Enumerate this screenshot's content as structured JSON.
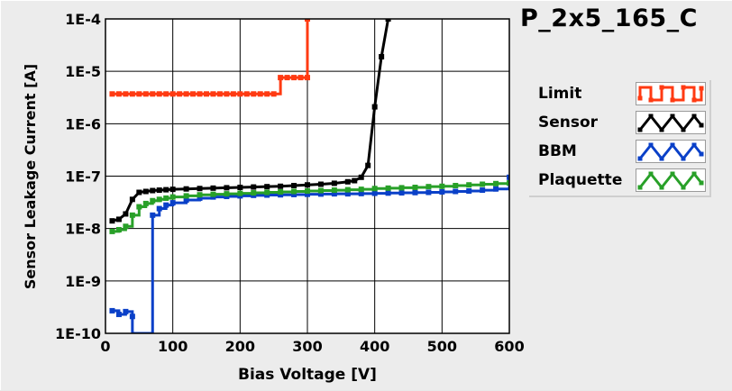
{
  "title": "P_2x5_165_C",
  "chart_data": {
    "type": "line",
    "title": "P_2x5_165_C",
    "xlabel": "Bias Voltage [V]",
    "ylabel": "Sensor Leakage Current [A]",
    "xlim": [
      0,
      600
    ],
    "ylim": [
      1e-10,
      0.0001
    ],
    "yscale": "log",
    "grid": true,
    "legend_position": "right",
    "x_ticks": [
      0,
      100,
      200,
      300,
      400,
      500,
      600
    ],
    "x_tick_labels": [
      "0",
      "100",
      "200",
      "300",
      "400",
      "500",
      "600"
    ],
    "y_ticks": [
      1e-10,
      1e-09,
      1e-08,
      1e-07,
      1e-06,
      1e-05,
      0.0001
    ],
    "y_tick_labels": [
      "1E-10",
      "1E-9",
      "1E-8",
      "1E-7",
      "1E-6",
      "1E-5",
      "1E-4"
    ],
    "series": [
      {
        "name": "Limit",
        "color": "#ff3a12",
        "step": true,
        "points": [
          [
            10,
            3.7e-06
          ],
          [
            20,
            3.7e-06
          ],
          [
            30,
            3.7e-06
          ],
          [
            40,
            3.7e-06
          ],
          [
            50,
            3.7e-06
          ],
          [
            60,
            3.7e-06
          ],
          [
            70,
            3.7e-06
          ],
          [
            80,
            3.7e-06
          ],
          [
            90,
            3.7e-06
          ],
          [
            100,
            3.7e-06
          ],
          [
            110,
            3.7e-06
          ],
          [
            120,
            3.7e-06
          ],
          [
            130,
            3.7e-06
          ],
          [
            140,
            3.7e-06
          ],
          [
            150,
            3.7e-06
          ],
          [
            160,
            3.7e-06
          ],
          [
            170,
            3.7e-06
          ],
          [
            180,
            3.7e-06
          ],
          [
            190,
            3.7e-06
          ],
          [
            200,
            3.7e-06
          ],
          [
            210,
            3.7e-06
          ],
          [
            220,
            3.7e-06
          ],
          [
            230,
            3.7e-06
          ],
          [
            240,
            3.7e-06
          ],
          [
            250,
            3.7e-06
          ],
          [
            260,
            7.6e-06
          ],
          [
            270,
            7.6e-06
          ],
          [
            280,
            7.6e-06
          ],
          [
            290,
            7.6e-06
          ],
          [
            300,
            7.6e-06
          ],
          [
            300,
            0.0001
          ]
        ]
      },
      {
        "name": "Sensor",
        "color": "#000000",
        "step": false,
        "points": [
          [
            10,
            1.4e-08
          ],
          [
            20,
            1.5e-08
          ],
          [
            30,
            1.9e-08
          ],
          [
            40,
            3.6e-08
          ],
          [
            50,
            4.9e-08
          ],
          [
            60,
            5.1e-08
          ],
          [
            70,
            5.3e-08
          ],
          [
            80,
            5.4e-08
          ],
          [
            90,
            5.5e-08
          ],
          [
            100,
            5.6e-08
          ],
          [
            120,
            5.7e-08
          ],
          [
            140,
            5.8e-08
          ],
          [
            160,
            5.9e-08
          ],
          [
            180,
            6e-08
          ],
          [
            200,
            6.1e-08
          ],
          [
            220,
            6.2e-08
          ],
          [
            240,
            6.3e-08
          ],
          [
            260,
            6.4e-08
          ],
          [
            280,
            6.6e-08
          ],
          [
            300,
            6.8e-08
          ],
          [
            320,
            7e-08
          ],
          [
            340,
            7.3e-08
          ],
          [
            360,
            7.8e-08
          ],
          [
            370,
            8.2e-08
          ],
          [
            380,
            9.5e-08
          ],
          [
            390,
            1.6e-07
          ],
          [
            400,
            2.1e-06
          ],
          [
            410,
            1.9e-05
          ],
          [
            420,
            0.0001
          ]
        ]
      },
      {
        "name": "BBM",
        "color": "#0a40c8",
        "step": true,
        "points": [
          [
            10,
            2.7e-10
          ],
          [
            20,
            2.3e-10
          ],
          [
            30,
            2.6e-10
          ],
          [
            40,
            2.1e-10
          ],
          [
            40,
            1e-10
          ],
          [
            70,
            1e-10
          ],
          [
            70,
            1.8e-08
          ],
          [
            80,
            2.4e-08
          ],
          [
            90,
            2.8e-08
          ],
          [
            100,
            3.1e-08
          ],
          [
            120,
            3.5e-08
          ],
          [
            140,
            3.8e-08
          ],
          [
            160,
            4e-08
          ],
          [
            180,
            4.1e-08
          ],
          [
            200,
            4.2e-08
          ],
          [
            220,
            4.3e-08
          ],
          [
            240,
            4.35e-08
          ],
          [
            260,
            4.4e-08
          ],
          [
            280,
            4.45e-08
          ],
          [
            300,
            4.5e-08
          ],
          [
            320,
            4.55e-08
          ],
          [
            340,
            4.6e-08
          ],
          [
            360,
            4.6e-08
          ],
          [
            380,
            4.65e-08
          ],
          [
            400,
            4.7e-08
          ],
          [
            420,
            4.75e-08
          ],
          [
            440,
            4.8e-08
          ],
          [
            460,
            4.85e-08
          ],
          [
            480,
            4.9e-08
          ],
          [
            500,
            5e-08
          ],
          [
            520,
            5.1e-08
          ],
          [
            540,
            5.2e-08
          ],
          [
            560,
            5.4e-08
          ],
          [
            580,
            5.7e-08
          ],
          [
            600,
            9.5e-08
          ]
        ]
      },
      {
        "name": "Plaquette",
        "color": "#28a028",
        "step": true,
        "points": [
          [
            10,
            8.8e-09
          ],
          [
            20,
            9.5e-09
          ],
          [
            30,
            1.1e-08
          ],
          [
            40,
            1.8e-08
          ],
          [
            50,
            2.6e-08
          ],
          [
            60,
            3e-08
          ],
          [
            70,
            3.4e-08
          ],
          [
            80,
            3.6e-08
          ],
          [
            90,
            3.8e-08
          ],
          [
            100,
            4e-08
          ],
          [
            120,
            4.2e-08
          ],
          [
            140,
            4.4e-08
          ],
          [
            160,
            4.5e-08
          ],
          [
            180,
            4.6e-08
          ],
          [
            200,
            4.7e-08
          ],
          [
            220,
            4.8e-08
          ],
          [
            240,
            4.9e-08
          ],
          [
            260,
            5e-08
          ],
          [
            280,
            5.1e-08
          ],
          [
            300,
            5.2e-08
          ],
          [
            320,
            5.3e-08
          ],
          [
            340,
            5.4e-08
          ],
          [
            360,
            5.5e-08
          ],
          [
            380,
            5.6e-08
          ],
          [
            400,
            5.8e-08
          ],
          [
            420,
            5.9e-08
          ],
          [
            440,
            6e-08
          ],
          [
            460,
            6.1e-08
          ],
          [
            480,
            6.3e-08
          ],
          [
            500,
            6.4e-08
          ],
          [
            520,
            6.6e-08
          ],
          [
            540,
            6.8e-08
          ],
          [
            560,
            7e-08
          ],
          [
            580,
            7.2e-08
          ],
          [
            600,
            7.4e-08
          ]
        ]
      }
    ]
  }
}
